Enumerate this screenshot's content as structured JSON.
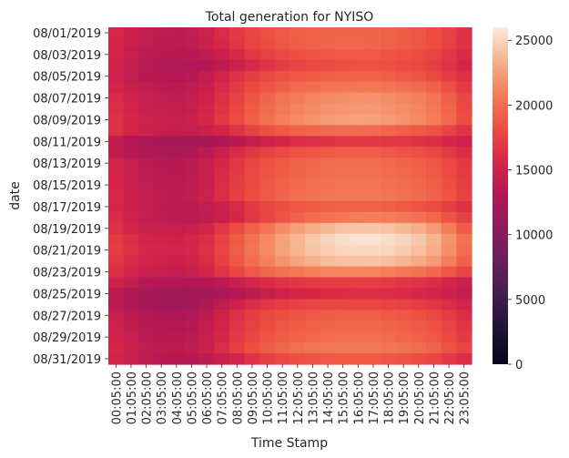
{
  "chart_data": {
    "type": "heatmap",
    "title": "Total generation for NYISO",
    "xlabel": "Time Stamp",
    "ylabel": "date",
    "x_tick_labels": [
      "00:05:00",
      "01:05:00",
      "02:05:00",
      "03:05:00",
      "04:05:00",
      "05:05:00",
      "06:05:00",
      "07:05:00",
      "08:05:00",
      "09:05:00",
      "10:05:00",
      "11:05:00",
      "12:05:00",
      "13:05:00",
      "14:05:00",
      "15:05:00",
      "16:05:00",
      "17:05:00",
      "18:05:00",
      "19:05:00",
      "20:05:00",
      "21:05:00",
      "22:05:00",
      "23:05:00"
    ],
    "y_tick_labels": [
      "08/01/2019",
      "08/03/2019",
      "08/05/2019",
      "08/07/2019",
      "08/09/2019",
      "08/11/2019",
      "08/13/2019",
      "08/15/2019",
      "08/17/2019",
      "08/19/2019",
      "08/21/2019",
      "08/23/2019",
      "08/25/2019",
      "08/27/2019",
      "08/29/2019",
      "08/31/2019"
    ],
    "rows": [
      "08/01/2019",
      "08/02/2019",
      "08/03/2019",
      "08/04/2019",
      "08/05/2019",
      "08/06/2019",
      "08/07/2019",
      "08/08/2019",
      "08/09/2019",
      "08/10/2019",
      "08/11/2019",
      "08/12/2019",
      "08/13/2019",
      "08/14/2019",
      "08/15/2019",
      "08/16/2019",
      "08/17/2019",
      "08/18/2019",
      "08/19/2019",
      "08/20/2019",
      "08/21/2019",
      "08/22/2019",
      "08/23/2019",
      "08/24/2019",
      "08/25/2019",
      "08/26/2019",
      "08/27/2019",
      "08/28/2019",
      "08/29/2019",
      "08/30/2019",
      "08/31/2019"
    ],
    "columns": [
      "00:05:00",
      "01:05:00",
      "02:05:00",
      "03:05:00",
      "04:05:00",
      "05:05:00",
      "06:05:00",
      "07:05:00",
      "08:05:00",
      "09:05:00",
      "10:05:00",
      "11:05:00",
      "12:05:00",
      "13:05:00",
      "14:05:00",
      "15:05:00",
      "16:05:00",
      "17:05:00",
      "18:05:00",
      "19:05:00",
      "20:05:00",
      "21:05:00",
      "22:05:00",
      "23:05:00"
    ],
    "values": [
      [
        15800,
        14900,
        14300,
        14000,
        13900,
        14200,
        15000,
        16000,
        17000,
        17800,
        18400,
        18800,
        19100,
        19300,
        19400,
        19500,
        19500,
        19500,
        19300,
        19000,
        18700,
        18200,
        17400,
        16500
      ],
      [
        15600,
        14700,
        14100,
        13800,
        13800,
        14000,
        14800,
        15800,
        16800,
        17600,
        18200,
        18700,
        19000,
        19300,
        19500,
        19600,
        19600,
        19500,
        19300,
        19000,
        18700,
        18200,
        17400,
        16400
      ],
      [
        15400,
        14500,
        13900,
        13600,
        13500,
        13600,
        14000,
        14800,
        15800,
        16700,
        17400,
        17900,
        18300,
        18500,
        18700,
        18800,
        18800,
        18800,
        18600,
        18400,
        18100,
        17600,
        16800,
        15900
      ],
      [
        15200,
        14300,
        13700,
        13300,
        13100,
        13100,
        13300,
        13900,
        14800,
        15700,
        16500,
        17100,
        17600,
        17900,
        18100,
        18300,
        18400,
        18400,
        18300,
        18100,
        17800,
        17300,
        16500,
        15600
      ],
      [
        15000,
        14100,
        13600,
        13300,
        13200,
        13500,
        14300,
        15400,
        16400,
        17200,
        17900,
        18400,
        18700,
        19000,
        19200,
        19300,
        19300,
        19300,
        19100,
        18800,
        18500,
        18000,
        17200,
        16300
      ],
      [
        15500,
        14600,
        14100,
        13800,
        13700,
        14000,
        14800,
        15900,
        17000,
        17900,
        18600,
        19200,
        19700,
        20000,
        20300,
        20500,
        20600,
        20600,
        20400,
        20100,
        19800,
        19300,
        18300,
        17100
      ],
      [
        15900,
        15000,
        14400,
        14100,
        14000,
        14300,
        15100,
        16300,
        17500,
        18600,
        19500,
        20300,
        20800,
        21200,
        21500,
        21700,
        21800,
        21800,
        21600,
        21300,
        20900,
        20300,
        19200,
        17800
      ],
      [
        16200,
        15300,
        14700,
        14400,
        14300,
        14600,
        15400,
        16600,
        17800,
        18900,
        19800,
        20600,
        21100,
        21500,
        21800,
        22000,
        22100,
        22100,
        21900,
        21600,
        21200,
        20600,
        19500,
        18000
      ],
      [
        16500,
        15600,
        15000,
        14700,
        14600,
        14900,
        15700,
        16900,
        18100,
        19200,
        20100,
        20900,
        21500,
        21900,
        22300,
        22500,
        22600,
        22500,
        22300,
        21900,
        21400,
        20800,
        19700,
        18200
      ],
      [
        16400,
        15500,
        14900,
        14500,
        14300,
        14400,
        14800,
        15500,
        16500,
        17500,
        18300,
        18900,
        19300,
        19600,
        19700,
        19800,
        19800,
        19700,
        19500,
        19200,
        18900,
        18400,
        17600,
        16600
      ],
      [
        14000,
        13200,
        12700,
        12400,
        12200,
        12200,
        12400,
        12800,
        13500,
        14300,
        15000,
        15600,
        16000,
        16300,
        16500,
        16700,
        16800,
        16900,
        16800,
        16700,
        16500,
        16200,
        15700,
        15000
      ],
      [
        14200,
        13400,
        12900,
        12700,
        12600,
        12900,
        13700,
        14800,
        15900,
        16800,
        17500,
        18000,
        18400,
        18700,
        18900,
        19000,
        19000,
        19000,
        18800,
        18600,
        18300,
        17800,
        17000,
        16000
      ],
      [
        15300,
        14400,
        13800,
        13500,
        13400,
        13700,
        14500,
        15700,
        16800,
        17700,
        18400,
        18900,
        19300,
        19600,
        19800,
        19900,
        19900,
        19900,
        19700,
        19500,
        19200,
        18700,
        17900,
        16900
      ],
      [
        15500,
        14600,
        14000,
        13700,
        13600,
        13900,
        14700,
        15900,
        17000,
        17900,
        18600,
        19100,
        19500,
        19800,
        20000,
        20100,
        20100,
        20100,
        19900,
        19700,
        19400,
        18900,
        18100,
        17100
      ],
      [
        15600,
        14700,
        14100,
        13800,
        13700,
        14000,
        14800,
        16000,
        17100,
        18000,
        18700,
        19300,
        19700,
        20000,
        20200,
        20300,
        20300,
        20300,
        20100,
        19900,
        19600,
        19100,
        18300,
        17300
      ],
      [
        15800,
        14900,
        14300,
        14000,
        13900,
        14200,
        15000,
        16200,
        17300,
        18200,
        18900,
        19500,
        19900,
        20200,
        20400,
        20500,
        20500,
        20500,
        20300,
        20100,
        19800,
        19300,
        18500,
        17500
      ],
      [
        15700,
        14800,
        14200,
        13900,
        13700,
        13800,
        14200,
        14900,
        15900,
        16900,
        17700,
        18300,
        18700,
        19000,
        19200,
        19300,
        19300,
        19300,
        19100,
        18900,
        18600,
        18100,
        17300,
        16300
      ],
      [
        15900,
        15000,
        14400,
        14000,
        13800,
        13800,
        14000,
        14600,
        15600,
        16700,
        17700,
        18600,
        19300,
        19800,
        20200,
        20600,
        20800,
        20900,
        20800,
        20600,
        20200,
        19600,
        18600,
        17400
      ],
      [
        16300,
        15400,
        14800,
        14500,
        14400,
        14700,
        15500,
        16800,
        18100,
        19300,
        20400,
        21500,
        22400,
        23100,
        23700,
        24100,
        24300,
        24300,
        24100,
        23700,
        23100,
        22200,
        20800,
        19000
      ],
      [
        17000,
        16100,
        15500,
        15200,
        15100,
        15400,
        16200,
        17500,
        18900,
        20200,
        21400,
        22600,
        23600,
        24400,
        25000,
        25400,
        25600,
        25600,
        25400,
        25000,
        24400,
        23500,
        22000,
        20200
      ],
      [
        17200,
        16300,
        15700,
        15400,
        15300,
        15600,
        16400,
        17700,
        19100,
        20400,
        21500,
        22600,
        23500,
        24200,
        24700,
        25000,
        25200,
        25200,
        25000,
        24600,
        24000,
        23100,
        21700,
        19900
      ],
      [
        16800,
        15900,
        15300,
        15000,
        14900,
        15200,
        16000,
        17300,
        18700,
        19900,
        21000,
        22000,
        22800,
        23400,
        23800,
        24100,
        24200,
        24200,
        24000,
        23600,
        23000,
        22200,
        20900,
        19300
      ],
      [
        16200,
        15300,
        14700,
        14400,
        14300,
        14600,
        15400,
        16600,
        17800,
        18800,
        19600,
        20200,
        20600,
        20900,
        21100,
        21200,
        21200,
        21100,
        20900,
        20600,
        20200,
        19600,
        18700,
        17600
      ],
      [
        15000,
        14100,
        13500,
        13100,
        12900,
        12900,
        13200,
        13800,
        14600,
        15400,
        16000,
        16500,
        16800,
        17000,
        17100,
        17200,
        17200,
        17200,
        17000,
        16800,
        16500,
        16100,
        15500,
        14800
      ],
      [
        13800,
        13000,
        12500,
        12200,
        12000,
        12000,
        12200,
        12600,
        13200,
        13900,
        14500,
        15000,
        15400,
        15700,
        15900,
        16000,
        16100,
        16100,
        16000,
        15900,
        15700,
        15400,
        14900,
        14300
      ],
      [
        13700,
        12900,
        12400,
        12100,
        12000,
        12200,
        12900,
        14000,
        15100,
        16000,
        16700,
        17200,
        17500,
        17700,
        17800,
        17900,
        17900,
        17900,
        17700,
        17500,
        17200,
        16800,
        16100,
        15300
      ],
      [
        14600,
        13800,
        13200,
        12900,
        12800,
        13100,
        13900,
        15100,
        16300,
        17200,
        17900,
        18300,
        18600,
        18800,
        19000,
        19100,
        19100,
        19100,
        18900,
        18700,
        18400,
        17900,
        17100,
        16200
      ],
      [
        15000,
        14200,
        13600,
        13300,
        13200,
        13500,
        14300,
        15500,
        16600,
        17500,
        18200,
        18700,
        19000,
        19300,
        19500,
        19600,
        19600,
        19600,
        19400,
        19200,
        18900,
        18400,
        17600,
        16600
      ],
      [
        15200,
        14400,
        13800,
        13500,
        13400,
        13700,
        14500,
        15700,
        16900,
        17800,
        18500,
        19000,
        19400,
        19700,
        19900,
        20000,
        20000,
        20000,
        19800,
        19600,
        19300,
        18800,
        18000,
        17000
      ],
      [
        15700,
        14800,
        14200,
        13900,
        13800,
        14100,
        14900,
        16100,
        17300,
        18300,
        19000,
        19600,
        20000,
        20300,
        20500,
        20600,
        20600,
        20600,
        20400,
        20200,
        19900,
        19400,
        18600,
        17600
      ],
      [
        15500,
        14600,
        14000,
        13600,
        13400,
        13500,
        13900,
        14600,
        15500,
        16500,
        17300,
        17900,
        18300,
        18600,
        18800,
        18900,
        18900,
        18900,
        18700,
        18500,
        18200,
        17700,
        16900,
        16000
      ]
    ],
    "colorbar": {
      "min": 0,
      "max": 26000,
      "ticks": [
        0,
        5000,
        10000,
        15000,
        20000,
        25000
      ],
      "colormap": "rocket"
    }
  }
}
